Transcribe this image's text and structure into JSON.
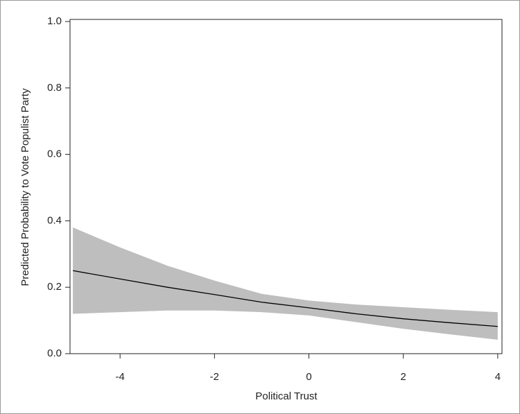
{
  "chart_data": {
    "type": "line",
    "x_label": "Political Trust",
    "y_label": "Predicted Probability to Vote Populist Party",
    "x": [
      -5,
      -4,
      -3,
      -2,
      -1,
      0,
      1,
      2,
      3,
      4
    ],
    "values": [
      0.25,
      0.225,
      0.2,
      0.178,
      0.155,
      0.138,
      0.12,
      0.105,
      0.093,
      0.082
    ],
    "color": "#000000",
    "band": {
      "lower": [
        0.12,
        0.125,
        0.13,
        0.13,
        0.125,
        0.115,
        0.095,
        0.075,
        0.058,
        0.042
      ],
      "upper": [
        0.38,
        0.32,
        0.265,
        0.22,
        0.18,
        0.16,
        0.148,
        0.14,
        0.132,
        0.125
      ],
      "color": "#bebebe"
    },
    "xlim": [
      -5.06,
      4.09
    ],
    "ylim": [
      0,
      1
    ],
    "xticks": [
      -4,
      -2,
      0,
      2,
      4
    ],
    "yticks": [
      {
        "value": 0,
        "label": "0.0"
      },
      {
        "value": 0.2,
        "label": "0.2"
      },
      {
        "value": 0.4,
        "label": "0.4"
      },
      {
        "value": 0.6,
        "label": "0.6"
      },
      {
        "value": 0.8,
        "label": "0.8"
      },
      {
        "value": 1,
        "label": "1.0"
      }
    ]
  }
}
